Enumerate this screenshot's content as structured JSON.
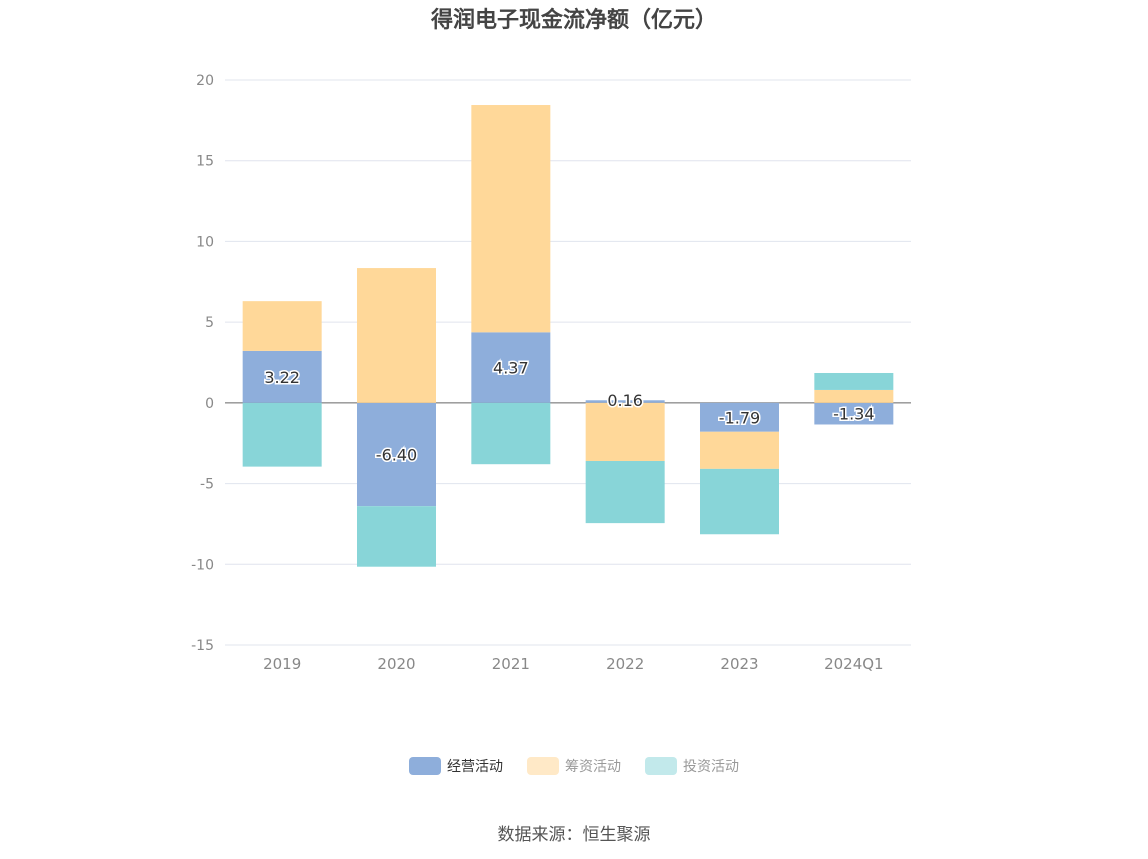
{
  "title": "得润电子现金流净额（亿元）",
  "source_text": "数据来源：恒生聚源",
  "chart_data": {
    "type": "bar",
    "stacked": true,
    "categories": [
      "2019",
      "2020",
      "2021",
      "2022",
      "2023",
      "2024Q1"
    ],
    "series": [
      {
        "name": "经营活动",
        "color": "#8eaedb",
        "values": [
          3.22,
          -6.4,
          4.37,
          0.16,
          -1.79,
          -1.34
        ],
        "labels": [
          "3.22",
          "-6.40",
          "4.37",
          "0.16",
          "-1.79",
          "-1.34"
        ]
      },
      {
        "name": "筹资活动",
        "color": "#ffd899",
        "values": [
          3.08,
          8.35,
          14.08,
          -3.6,
          -2.3,
          0.8
        ]
      },
      {
        "name": "投资活动",
        "color": "#88d5d8",
        "values": [
          -3.95,
          -3.75,
          -3.8,
          -3.85,
          -4.05,
          1.05
        ]
      }
    ],
    "y_ticks": [
      "20",
      "15",
      "10",
      "5",
      "0",
      "-5",
      "-10",
      "-15"
    ],
    "ylim": [
      -15,
      20
    ],
    "grid": true,
    "legend_position": "bottom"
  }
}
